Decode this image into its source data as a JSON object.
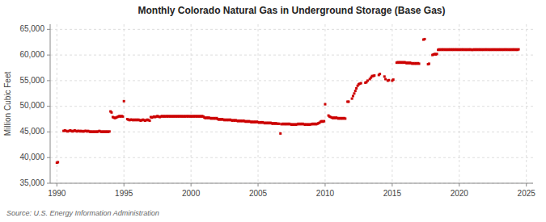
{
  "chart_data": {
    "type": "scatter",
    "title": "Monthly Colorado Natural Gas in Underground Storage (Base Gas)",
    "ylabel": "Million Cubic Feet",
    "source": "Source: U.S. Energy Information Administration",
    "xlim": [
      1989.5,
      2025.5
    ],
    "ylim": [
      35000,
      66000
    ],
    "xticks": [
      1990,
      1995,
      2000,
      2005,
      2010,
      2015,
      2020,
      2025
    ],
    "yticks": [
      {
        "value": 35000,
        "label": "35,000"
      },
      {
        "value": 40000,
        "label": "40,000"
      },
      {
        "value": 45000,
        "label": "45,000"
      },
      {
        "value": 50000,
        "label": "50,000"
      },
      {
        "value": 55000,
        "label": "55,000"
      },
      {
        "value": 60000,
        "label": "60,000"
      },
      {
        "value": 65000,
        "label": "65,000"
      }
    ],
    "grid": true,
    "color": "#cc0000",
    "marker": "square",
    "x": [
      1990.0,
      1990.08,
      1990.5,
      1990.6,
      1990.7,
      1990.8,
      1990.9,
      1991.0,
      1991.08,
      1991.17,
      1991.25,
      1991.33,
      1991.42,
      1991.5,
      1991.58,
      1991.67,
      1991.75,
      1991.83,
      1991.92,
      1992.0,
      1992.08,
      1992.17,
      1992.25,
      1992.33,
      1992.42,
      1992.5,
      1992.58,
      1992.67,
      1992.75,
      1992.83,
      1992.92,
      1993.0,
      1993.08,
      1993.17,
      1993.25,
      1993.33,
      1993.42,
      1993.5,
      1993.58,
      1993.67,
      1993.75,
      1993.83,
      1993.92,
      1994.0,
      1994.08,
      1994.17,
      1994.25,
      1994.33,
      1994.42,
      1994.5,
      1994.58,
      1994.67,
      1994.75,
      1994.83,
      1994.92,
      1995.0,
      1995.25,
      1995.33,
      1995.42,
      1995.5,
      1995.58,
      1995.67,
      1995.75,
      1995.83,
      1995.92,
      1996.0,
      1996.08,
      1996.17,
      1996.25,
      1996.33,
      1996.42,
      1996.5,
      1996.58,
      1996.67,
      1996.75,
      1996.83,
      1996.92,
      1997.0,
      1997.08,
      1997.17,
      1997.25,
      1997.33,
      1997.42,
      1997.5,
      1997.58,
      1997.67,
      1997.75,
      1997.83,
      1997.92,
      1998.0,
      1998.08,
      1998.17,
      1998.25,
      1998.33,
      1998.42,
      1998.5,
      1998.58,
      1998.67,
      1998.75,
      1998.83,
      1998.92,
      1999.0,
      1999.08,
      1999.17,
      1999.25,
      1999.33,
      1999.42,
      1999.5,
      1999.58,
      1999.67,
      1999.75,
      1999.83,
      1999.92,
      2000.0,
      2000.08,
      2000.17,
      2000.25,
      2000.33,
      2000.42,
      2000.5,
      2000.58,
      2000.67,
      2000.75,
      2000.83,
      2000.92,
      2001.0,
      2001.08,
      2001.17,
      2001.25,
      2001.33,
      2001.42,
      2001.5,
      2001.58,
      2001.67,
      2001.75,
      2001.83,
      2001.92,
      2002.0,
      2002.08,
      2002.17,
      2002.25,
      2002.33,
      2002.42,
      2002.5,
      2002.58,
      2002.67,
      2002.75,
      2002.83,
      2002.92,
      2003.0,
      2003.08,
      2003.17,
      2003.25,
      2003.33,
      2003.42,
      2003.5,
      2003.58,
      2003.67,
      2003.75,
      2003.83,
      2003.92,
      2004.0,
      2004.08,
      2004.17,
      2004.25,
      2004.33,
      2004.42,
      2004.5,
      2004.58,
      2004.67,
      2004.75,
      2004.83,
      2004.92,
      2005.0,
      2005.08,
      2005.17,
      2005.25,
      2005.33,
      2005.42,
      2005.5,
      2005.58,
      2005.67,
      2005.75,
      2005.83,
      2005.92,
      2006.0,
      2006.08,
      2006.17,
      2006.25,
      2006.33,
      2006.42,
      2006.5,
      2006.58,
      2006.67,
      2006.75,
      2006.83,
      2006.92,
      2007.0,
      2007.08,
      2007.17,
      2007.25,
      2007.33,
      2007.42,
      2007.5,
      2007.58,
      2007.67,
      2007.75,
      2007.83,
      2007.92,
      2008.0,
      2008.08,
      2008.17,
      2008.25,
      2008.33,
      2008.42,
      2008.5,
      2008.58,
      2008.67,
      2008.75,
      2008.83,
      2008.92,
      2009.0,
      2009.08,
      2009.17,
      2009.25,
      2009.33,
      2009.42,
      2009.5,
      2009.58,
      2009.67,
      2009.75,
      2009.83,
      2009.92,
      2010.0,
      2010.25,
      2010.33,
      2010.42,
      2010.5,
      2010.58,
      2010.67,
      2010.75,
      2010.83,
      2010.92,
      2011.0,
      2011.08,
      2011.17,
      2011.25,
      2011.33,
      2011.42,
      2011.5,
      2011.67,
      2011.75,
      2012.0,
      2012.08,
      2012.17,
      2012.25,
      2012.33,
      2012.42,
      2012.5,
      2012.58,
      2012.67,
      2013.0,
      2013.08,
      2013.17,
      2013.33,
      2013.42,
      2013.5,
      2013.58,
      2013.67,
      2014.0,
      2014.08,
      2014.42,
      2014.5,
      2014.67,
      2014.75,
      2015.0,
      2015.08,
      2015.33,
      2015.42,
      2015.5,
      2015.58,
      2015.67,
      2015.75,
      2015.83,
      2015.92,
      2016.0,
      2016.08,
      2016.17,
      2016.25,
      2016.33,
      2016.42,
      2016.5,
      2016.58,
      2016.67,
      2016.75,
      2016.83,
      2016.92,
      2017.0,
      2017.33,
      2017.42,
      2017.67,
      2017.75,
      2018.0,
      2018.08,
      2018.17,
      2018.25,
      2018.33,
      2018.42,
      2018.5,
      2018.58,
      2018.67,
      2018.75,
      2018.83,
      2018.92,
      2019.0,
      2019.08,
      2019.17,
      2019.25,
      2019.33,
      2019.42,
      2019.5,
      2019.58,
      2019.67,
      2019.75,
      2019.83,
      2019.92,
      2020.0,
      2020.08,
      2020.17,
      2020.25,
      2020.33,
      2020.42,
      2020.5,
      2020.58,
      2020.67,
      2020.75,
      2020.83,
      2020.92,
      2021.0,
      2021.08,
      2021.17,
      2021.25,
      2021.33,
      2021.42,
      2021.5,
      2021.58,
      2021.67,
      2021.75,
      2021.83,
      2021.92,
      2022.0,
      2022.08,
      2022.17,
      2022.25,
      2022.33,
      2022.42,
      2022.5,
      2022.58,
      2022.67,
      2022.75,
      2022.83,
      2022.92,
      2023.0,
      2023.08,
      2023.17,
      2023.25,
      2023.33,
      2023.42,
      2023.5,
      2023.58,
      2023.67,
      2023.75,
      2023.83,
      2023.92,
      2024.0,
      2024.08,
      2024.17,
      2024.25,
      2024.33,
      2024.42
    ],
    "values": [
      39000,
      39100,
      45200,
      45300,
      45200,
      45100,
      45200,
      45300,
      45200,
      45100,
      45200,
      45300,
      45200,
      45100,
      45200,
      45200,
      45100,
      45200,
      45100,
      45100,
      45200,
      45200,
      45100,
      45200,
      45100,
      45000,
      45100,
      45000,
      45100,
      45000,
      45100,
      45000,
      45100,
      45200,
      45100,
      45000,
      45100,
      45000,
      45100,
      45000,
      45100,
      45000,
      45100,
      49000,
      48800,
      47900,
      47800,
      47700,
      47800,
      47900,
      48000,
      48100,
      48000,
      48100,
      48000,
      51000,
      47500,
      47400,
      47300,
      47400,
      47400,
      47300,
      47400,
      47300,
      47400,
      47300,
      47400,
      47300,
      47200,
      47300,
      47400,
      47300,
      47200,
      47300,
      47400,
      47300,
      47200,
      47900,
      47800,
      47900,
      48000,
      47900,
      48000,
      48100,
      48000,
      47900,
      48000,
      48100,
      48000,
      48100,
      48000,
      48100,
      48000,
      48100,
      48000,
      48100,
      48000,
      48100,
      48000,
      48100,
      48000,
      48100,
      48000,
      48100,
      48000,
      48100,
      48000,
      48100,
      48000,
      48100,
      48000,
      48100,
      48000,
      48100,
      48000,
      48100,
      48000,
      48100,
      48000,
      48100,
      48000,
      48100,
      48000,
      48100,
      48000,
      47800,
      47700,
      47800,
      47700,
      47800,
      47700,
      47600,
      47700,
      47600,
      47700,
      47600,
      47700,
      47500,
      47400,
      47500,
      47400,
      47500,
      47400,
      47300,
      47400,
      47300,
      47400,
      47300,
      47400,
      47300,
      47200,
      47300,
      47200,
      47300,
      47200,
      47100,
      47200,
      47100,
      47200,
      47100,
      47200,
      47100,
      47000,
      47100,
      47000,
      47100,
      47000,
      46900,
      47000,
      46900,
      47000,
      46900,
      47000,
      46900,
      46800,
      46900,
      46800,
      46900,
      46800,
      46700,
      46800,
      46700,
      46800,
      46700,
      46800,
      46700,
      46600,
      46700,
      46600,
      46700,
      46600,
      46600,
      46600,
      44700,
      46500,
      46600,
      46500,
      46600,
      46500,
      46600,
      46500,
      46600,
      46500,
      46400,
      46500,
      46400,
      46500,
      46400,
      46500,
      46600,
      46500,
      46600,
      46500,
      46600,
      46500,
      46400,
      46500,
      46400,
      46500,
      46400,
      46500,
      46500,
      46600,
      46500,
      46600,
      46500,
      46600,
      46700,
      46800,
      47000,
      47100,
      47000,
      47100,
      50400,
      48200,
      48000,
      47900,
      47800,
      47700,
      47800,
      47700,
      47800,
      47700,
      47600,
      47700,
      47600,
      47700,
      47600,
      47700,
      47600,
      50900,
      50900,
      51500,
      52000,
      52500,
      53000,
      53500,
      54000,
      54300,
      54400,
      54500,
      54600,
      54700,
      55000,
      55300,
      55600,
      55900,
      55900,
      56000,
      56100,
      56300,
      55800,
      55300,
      55000,
      55100,
      55000,
      55200,
      58500,
      58600,
      58500,
      58600,
      58500,
      58600,
      58500,
      58600,
      58500,
      58400,
      58500,
      58400,
      58500,
      58400,
      58300,
      58400,
      58300,
      58400,
      58300,
      58400,
      58300,
      63000,
      63100,
      58200,
      58300,
      60000,
      60100,
      60200,
      60100,
      60200,
      61000,
      61100,
      61000,
      61100,
      61000,
      61100,
      61000,
      61100,
      61000,
      61100,
      61000,
      61100,
      61000,
      61100,
      61000,
      61100,
      61000,
      61100,
      61000,
      61100,
      61000,
      61100,
      61000,
      61100,
      61000,
      61100,
      61000,
      61100,
      61000,
      61100,
      61000,
      61000,
      61100,
      61000,
      61100,
      61000,
      61100,
      61000,
      61100,
      61000,
      61100,
      61000,
      61100,
      61000,
      61100,
      61000,
      61100,
      61000,
      61100,
      61000,
      61100,
      61000,
      61100,
      61000,
      61100,
      61000,
      61100,
      61000,
      61100,
      61000,
      61100,
      61000,
      61100,
      61000,
      61100,
      61000,
      61100,
      61000,
      61100,
      61000,
      61100,
      61000,
      61100
    ]
  }
}
